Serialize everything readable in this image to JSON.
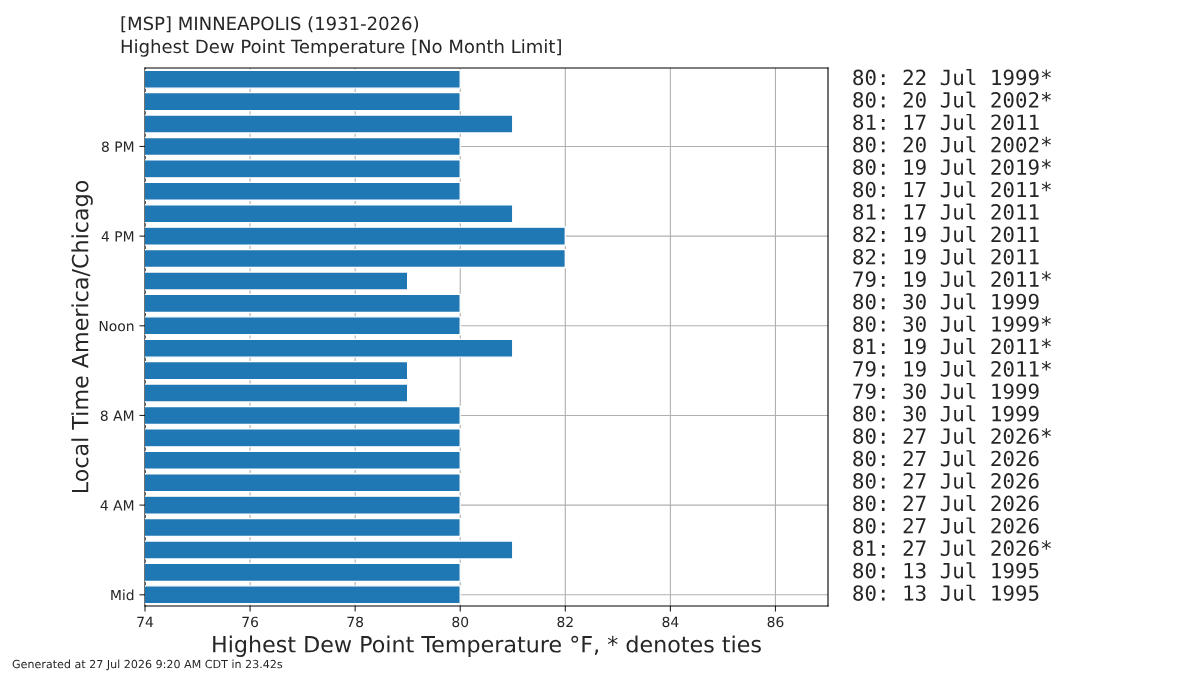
{
  "chart_data": {
    "type": "bar",
    "orientation": "horizontal",
    "title": "[MSP] MINNEAPOLIS (1931-2026)",
    "subtitle": "Highest Dew Point Temperature [No Month Limit]",
    "xlabel": "Highest Dew Point Temperature °F, * denotes ties",
    "ylabel": "Local Time America/Chicago",
    "categories": [
      null,
      null,
      null,
      "8 PM",
      null,
      null,
      null,
      "4 PM",
      null,
      null,
      null,
      "Noon",
      null,
      null,
      null,
      "8 AM",
      null,
      null,
      null,
      "4 AM",
      null,
      null,
      null,
      "Mid"
    ],
    "values": [
      80,
      80,
      81,
      80,
      80,
      80,
      81,
      82,
      82,
      79,
      80,
      80,
      81,
      79,
      79,
      80,
      80,
      80,
      80,
      80,
      80,
      81,
      80,
      80
    ],
    "annotations": [
      "80: 22 Jul 1999*",
      "80: 20 Jul 2002*",
      "81: 17 Jul 2011",
      "80: 20 Jul 2002*",
      "80: 19 Jul 2019*",
      "80: 17 Jul 2011*",
      "81: 17 Jul 2011",
      "82: 19 Jul 2011",
      "82: 19 Jul 2011",
      "79: 19 Jul 2011*",
      "80: 30 Jul 1999",
      "80: 30 Jul 1999*",
      "81: 19 Jul 2011*",
      "79: 19 Jul 2011*",
      "79: 30 Jul 1999",
      "80: 30 Jul 1999",
      "80: 27 Jul 2026*",
      "80: 27 Jul 2026",
      "80: 27 Jul 2026",
      "80: 27 Jul 2026",
      "80: 27 Jul 2026",
      "81: 27 Jul 2026*",
      "80: 13 Jul 1995",
      "80: 13 Jul 1995",
      "Generated at 27 Jul 2026 9:20 AM CDT in 23.42s"
    ],
    "color": "#1f77b4",
    "xlim": [
      74,
      87
    ],
    "xticks": [
      74,
      76,
      78,
      80,
      82,
      84,
      86
    ],
    "grid": true
  }
}
